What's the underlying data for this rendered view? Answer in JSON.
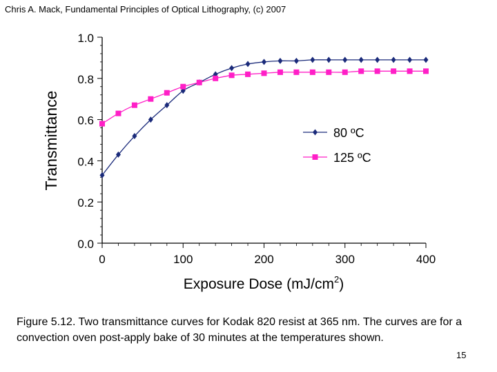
{
  "header": {
    "text": "Chris A. Mack, Fundamental Principles of Optical Lithography, (c) 2007"
  },
  "chart_data": {
    "type": "line",
    "title": "",
    "xlabel": "Exposure Dose (mJ/cm",
    "xlabel_sup": "2",
    "xlabel_end": ")",
    "ylabel": "Transmittance",
    "xlim": [
      0,
      400
    ],
    "ylim": [
      0.0,
      1.0
    ],
    "xticks": [
      0,
      100,
      200,
      300,
      400
    ],
    "xtick_labels": [
      "0",
      "100",
      "200",
      "300",
      "400"
    ],
    "yticks": [
      0.0,
      0.2,
      0.4,
      0.6,
      0.8,
      1.0
    ],
    "ytick_labels": [
      "0.0",
      "0.2",
      "0.4",
      "0.6",
      "0.8",
      "1.0"
    ],
    "grid": false,
    "legend_position": "center-right",
    "series": [
      {
        "name": "80 ºC",
        "color": "#1a2a7a",
        "marker": "diamond",
        "x": [
          0,
          20,
          40,
          60,
          80,
          100,
          120,
          140,
          160,
          180,
          200,
          220,
          240,
          260,
          280,
          300,
          320,
          340,
          360,
          380,
          400
        ],
        "y": [
          0.33,
          0.43,
          0.52,
          0.6,
          0.67,
          0.74,
          0.78,
          0.82,
          0.85,
          0.87,
          0.88,
          0.885,
          0.885,
          0.89,
          0.89,
          0.89,
          0.89,
          0.89,
          0.89,
          0.89,
          0.89
        ]
      },
      {
        "name": "125 ºC",
        "color": "#ff1fc7",
        "marker": "square",
        "x": [
          0,
          20,
          40,
          60,
          80,
          100,
          120,
          140,
          160,
          180,
          200,
          220,
          240,
          260,
          280,
          300,
          320,
          340,
          360,
          380,
          400
        ],
        "y": [
          0.58,
          0.63,
          0.67,
          0.7,
          0.73,
          0.76,
          0.78,
          0.8,
          0.815,
          0.82,
          0.825,
          0.83,
          0.83,
          0.83,
          0.83,
          0.83,
          0.835,
          0.835,
          0.835,
          0.835,
          0.835
        ]
      }
    ]
  },
  "caption": {
    "text": "Figure 5.12.  Two transmittance curves for Kodak 820 resist at 365 nm.  The curves are for a convection oven post-apply bake of 30 minutes at the temperatures shown."
  },
  "page_number": "15"
}
